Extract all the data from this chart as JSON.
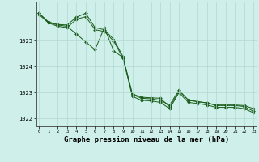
{
  "bg_color": "#cff0ea",
  "line_color": "#1a5c1a",
  "grid_color": "#b0d8d0",
  "ylabel_ticks": [
    1022,
    1023,
    1024,
    1025
  ],
  "xticks": [
    0,
    1,
    2,
    3,
    4,
    5,
    6,
    7,
    8,
    9,
    10,
    11,
    12,
    13,
    14,
    15,
    16,
    17,
    18,
    19,
    20,
    21,
    22,
    23
  ],
  "xlabel": "Graphe pression niveau de la mer (hPa)",
  "xlabel_fontsize": 6.5,
  "ylim": [
    1021.7,
    1026.5
  ],
  "xlim": [
    -0.3,
    23.3
  ],
  "series1": [
    1026.05,
    1025.7,
    1025.6,
    1025.55,
    1025.25,
    1024.95,
    1024.65,
    1025.5,
    1024.6,
    1024.35,
    1022.95,
    1022.82,
    1022.8,
    1022.78,
    1022.45,
    1023.05,
    1022.72,
    1022.65,
    1022.6,
    1022.52,
    1022.52,
    1022.52,
    1022.5,
    1022.38
  ],
  "series2": [
    1026.05,
    1025.72,
    1025.62,
    1025.6,
    1025.9,
    1026.05,
    1025.5,
    1025.42,
    1025.05,
    1024.38,
    1022.92,
    1022.78,
    1022.76,
    1022.7,
    1022.52,
    1023.1,
    1022.7,
    1022.65,
    1022.6,
    1022.5,
    1022.5,
    1022.5,
    1022.46,
    1022.28
  ],
  "series3": [
    1026.0,
    1025.68,
    1025.55,
    1025.5,
    1025.82,
    1025.92,
    1025.42,
    1025.35,
    1024.98,
    1024.32,
    1022.85,
    1022.7,
    1022.68,
    1022.62,
    1022.38,
    1023.0,
    1022.62,
    1022.58,
    1022.52,
    1022.43,
    1022.43,
    1022.43,
    1022.38,
    1022.22
  ]
}
